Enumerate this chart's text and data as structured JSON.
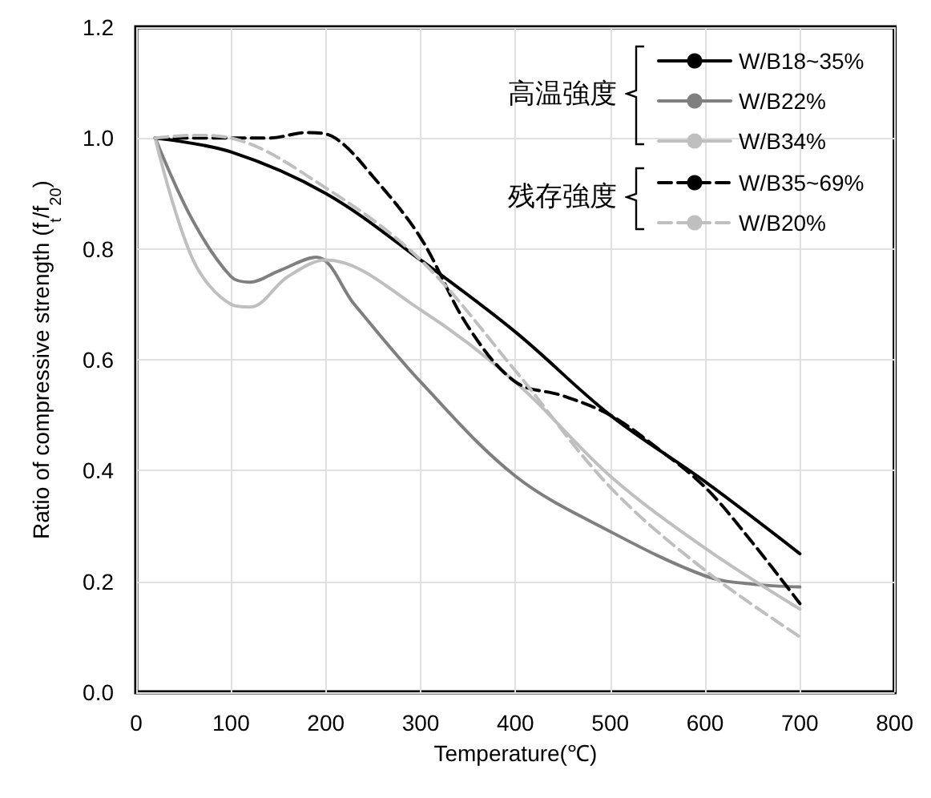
{
  "chart_data": {
    "type": "line",
    "xlabel": "Temperature(℃)",
    "ylabel": "Ratio of compressive strength (f$_{t}$/f$_{20}$)",
    "xlim": [
      0,
      800
    ],
    "xticks": [
      0,
      100,
      200,
      300,
      400,
      500,
      600,
      700,
      800
    ],
    "ylim": [
      0,
      1.2
    ],
    "yticks": [
      {
        "value": 0,
        "label": "0.0"
      },
      0.2,
      0.4,
      0.6,
      0.8,
      {
        "value": 1,
        "label": "1.0"
      },
      1.2
    ],
    "grid": true,
    "legend": "top right",
    "marker": "none",
    "annotations": [
      "高温強度",
      "残存強度"
    ],
    "series": [
      {
        "name": "W/B18~35%",
        "color": "#000000",
        "line_style": "solid",
        "x": [
          20,
          100,
          200,
          300,
          400,
          500,
          600,
          700
        ],
        "values": [
          1.0,
          0.975,
          0.9,
          0.78,
          0.65,
          0.5,
          0.38,
          0.25
        ]
      },
      {
        "name": "W/B22%",
        "color": "#7f7f7f",
        "line_style": "solid",
        "x": [
          20,
          60,
          100,
          120,
          150,
          190,
          230,
          300,
          400,
          500,
          600,
          650,
          700
        ],
        "values": [
          1.0,
          0.85,
          0.75,
          0.74,
          0.76,
          0.785,
          0.7,
          0.56,
          0.39,
          0.29,
          0.21,
          0.195,
          0.19
        ]
      },
      {
        "name": "W/B34%",
        "color": "#bfbfbf",
        "line_style": "solid",
        "x": [
          20,
          60,
          100,
          120,
          160,
          200,
          300,
          400,
          500,
          600,
          700
        ],
        "values": [
          1.0,
          0.78,
          0.7,
          0.695,
          0.75,
          0.78,
          0.69,
          0.56,
          0.39,
          0.26,
          0.15
        ]
      },
      {
        "name": "W/B35~69%",
        "color": "#000000",
        "line_style": "dashed",
        "x": [
          20,
          100,
          140,
          180,
          210,
          250,
          300,
          350,
          400,
          450,
          500,
          550,
          600,
          650,
          700
        ],
        "values": [
          1.0,
          1.0,
          1.0,
          1.01,
          1.0,
          0.93,
          0.82,
          0.66,
          0.56,
          0.535,
          0.5,
          0.44,
          0.37,
          0.27,
          0.16
        ]
      },
      {
        "name": "W/B20%",
        "color": "#bfbfbf",
        "line_style": "dashed",
        "x": [
          20,
          60,
          100,
          200,
          300,
          400,
          500,
          600,
          700
        ],
        "values": [
          1.0,
          1.005,
          1.0,
          0.91,
          0.78,
          0.58,
          0.37,
          0.22,
          0.1
        ]
      }
    ]
  }
}
